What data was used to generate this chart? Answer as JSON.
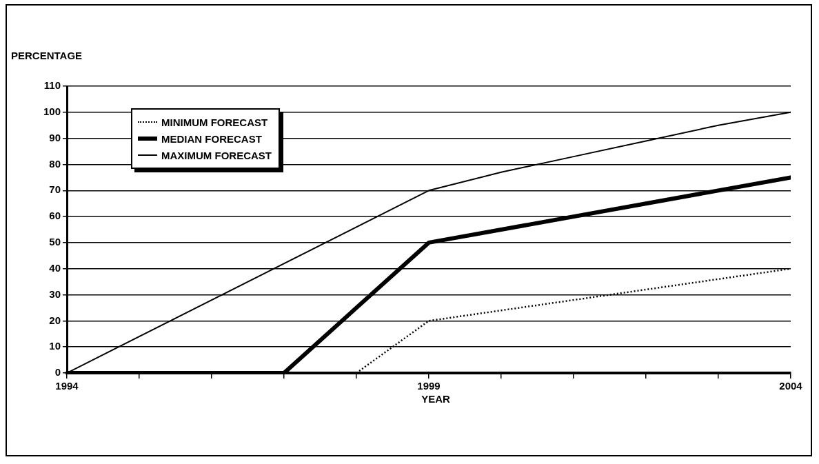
{
  "chart_data": {
    "type": "line",
    "xlabel": "YEAR",
    "ylabel": "PERCENTAGE",
    "xlim": [
      1994,
      2004
    ],
    "xticks": [
      1994,
      {
        "value": 1995,
        "label": null
      },
      {
        "value": 1996,
        "label": null
      },
      {
        "value": 1997,
        "label": null
      },
      {
        "value": 1998,
        "label": null
      },
      1999,
      {
        "value": 2000,
        "label": null
      },
      {
        "value": 2001,
        "label": null
      },
      {
        "value": 2002,
        "label": null
      },
      {
        "value": 2003,
        "label": null
      },
      2004
    ],
    "ylim": [
      0,
      110
    ],
    "yticks": [
      0,
      10,
      20,
      30,
      40,
      50,
      60,
      70,
      80,
      90,
      100,
      110
    ],
    "grid": "y",
    "legend": "top left",
    "marker": "none",
    "series": [
      {
        "name": "MINIMUM FORECAST",
        "color": "#000000",
        "line_style": "dotted",
        "x": [
          1994,
          1998,
          1999,
          2004
        ],
        "values": [
          0,
          0,
          20,
          40
        ]
      },
      {
        "name": "MEDIAN FORECAST",
        "color": "#000000",
        "line_style": "solid",
        "x": [
          1994,
          1997,
          1999,
          2004
        ],
        "values": [
          0,
          0,
          50,
          75
        ]
      },
      {
        "name": "MAXIMUM FORECAST",
        "color": "#000000",
        "line_style": "solid",
        "x": [
          1994,
          1999,
          2000,
          2001,
          2002,
          2003,
          2004
        ],
        "values": [
          0,
          70,
          77,
          83,
          89,
          95,
          100
        ]
      }
    ]
  }
}
